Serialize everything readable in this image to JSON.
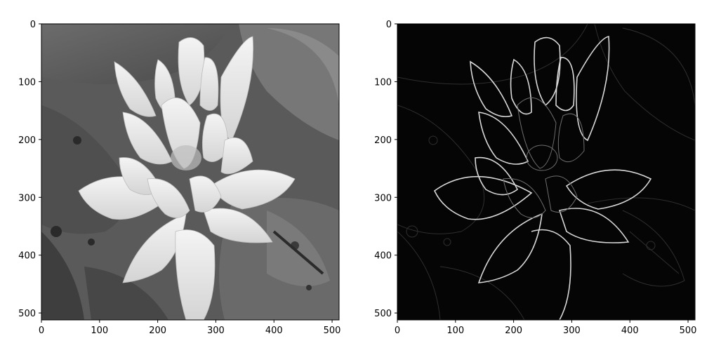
{
  "chart_data": [
    {
      "type": "image",
      "title": "",
      "xlabel": "",
      "ylabel": "",
      "xlim": [
        0,
        512
      ],
      "ylim": [
        512,
        0
      ],
      "xticks": [
        0,
        100,
        200,
        300,
        400,
        500
      ],
      "yticks": [
        0,
        100,
        200,
        300,
        400,
        500
      ],
      "grid": false,
      "colormap": "gray",
      "content": "grayscale water lily photo"
    },
    {
      "type": "image",
      "title": "",
      "xlabel": "",
      "ylabel": "",
      "xlim": [
        0,
        512
      ],
      "ylim": [
        512,
        0
      ],
      "xticks": [
        0,
        100,
        200,
        300,
        400,
        500
      ],
      "yticks": [
        0,
        100,
        200,
        300,
        400,
        500
      ],
      "grid": false,
      "colormap": "gray",
      "content": "edge magnitude of water lily photo"
    }
  ],
  "colors": {
    "background": "#ffffff",
    "axis": "#000000",
    "edge": "#d8d8d8",
    "edge_bg": "#050505"
  }
}
